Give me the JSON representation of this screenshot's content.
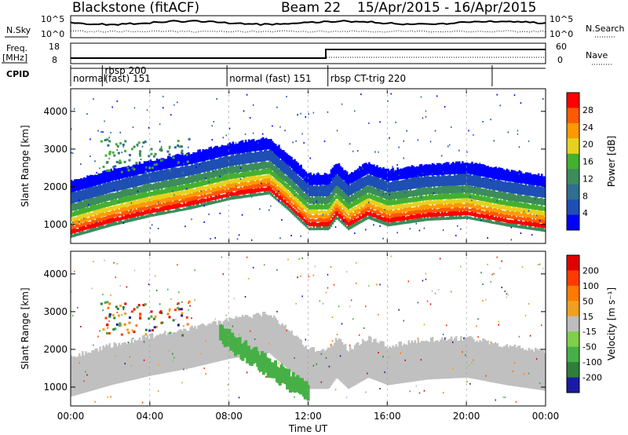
{
  "header": {
    "station": "Blackstone (fitACF)",
    "beam": "Beam 22",
    "dates": "15/Apr/2015 - 16/Apr/2015"
  },
  "status_panels": {
    "nsky_label": "N.Sky",
    "nsearch_label": "N.Search",
    "freq_label": "Freq.",
    "freq_unit": "[MHz]",
    "nave_label": "Nave",
    "cpid_label": "CPID",
    "noise_ticks": [
      "10^5",
      "10^0"
    ],
    "freq_ticks": [
      "18",
      "8"
    ],
    "nave_ticks": [
      "60",
      "0"
    ]
  },
  "cpid_segments": [
    {
      "label": "normal",
      "start": 0.0
    },
    {
      "label": "rbsp 200",
      "label2": "(fast) 151",
      "start": 1.6
    },
    {
      "label": "normal (fast) 151",
      "start": 7.9
    },
    {
      "label": "rbsp CT-trig 220",
      "start": 13.0
    }
  ],
  "colors": {
    "power": [
      "#0000ff",
      "#1e4fb4",
      "#2f6f8f",
      "#3c8c5c",
      "#44b030",
      "#e6d21e",
      "#ff9900",
      "#ff5a00",
      "#ff0000"
    ],
    "velocity": [
      "#1a1aa8",
      "#2e7f3a",
      "#46b046",
      "#7fcf4a",
      "#bdbdbd",
      "#f0a020",
      "#ff7a00",
      "#ff3a00",
      "#e00000"
    ],
    "gray": "#c0c0c0"
  },
  "chart_data": [
    {
      "type": "heatmap",
      "name": "power",
      "xlabel": "",
      "ylabel": "Slant Range [km]",
      "x_ticks": [
        "00:00",
        "04:00",
        "08:00",
        "12:00",
        "16:00",
        "20:00",
        "00:00"
      ],
      "y_ticks": [
        "1000",
        "2000",
        "3000",
        "4000"
      ],
      "xlim": [
        0,
        24
      ],
      "ylim": [
        500,
        4600
      ],
      "colorbar_label": "Power [dB]",
      "colorbar_ticks": [
        "28",
        "24",
        "20",
        "16",
        "12",
        "8",
        "4"
      ],
      "band_center_km": [
        [
          0,
          1000
        ],
        [
          2,
          1300
        ],
        [
          4,
          1550
        ],
        [
          6,
          1750
        ],
        [
          8,
          2000
        ],
        [
          10,
          2150
        ],
        [
          11,
          1700
        ],
        [
          12,
          1200
        ],
        [
          13,
          1200
        ],
        [
          13.4,
          1500
        ],
        [
          14,
          1200
        ],
        [
          15,
          1500
        ],
        [
          16,
          1300
        ],
        [
          18,
          1450
        ],
        [
          20,
          1500
        ],
        [
          22,
          1300
        ],
        [
          24,
          1150
        ]
      ]
    },
    {
      "type": "heatmap",
      "name": "velocity",
      "xlabel": "Time UT",
      "ylabel": "Slant Range [km]",
      "x_ticks": [
        "00:00",
        "04:00",
        "08:00",
        "12:00",
        "16:00",
        "20:00",
        "00:00"
      ],
      "y_ticks": [
        "1000",
        "2000",
        "3000",
        "4000"
      ],
      "xlim": [
        0,
        24
      ],
      "ylim": [
        500,
        4600
      ],
      "colorbar_label": "Velocity [m s⁻¹]",
      "colorbar_ticks": [
        "200",
        "100",
        "50",
        "15",
        "-15",
        "-50",
        "-100",
        "-200"
      ]
    }
  ]
}
